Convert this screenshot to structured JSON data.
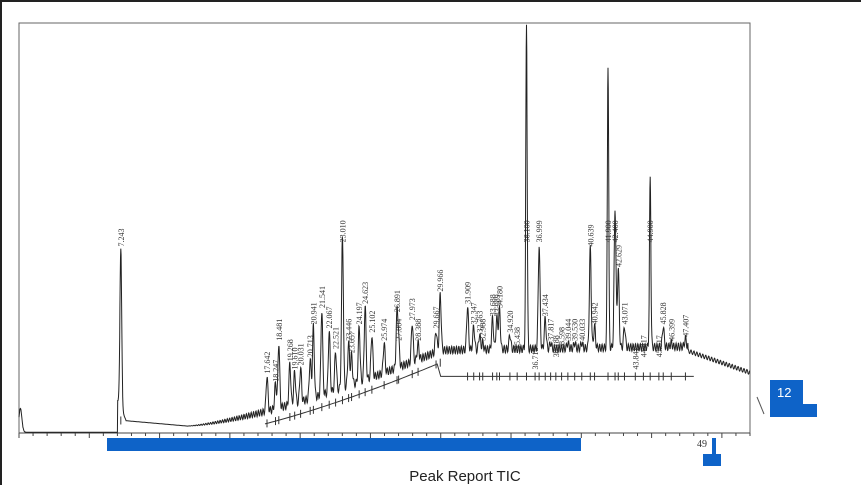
{
  "chart_data": {
    "type": "line",
    "xlabel": "Peak Report TIC",
    "tick_label": "49",
    "badge_label": "12",
    "xlim": [
      0,
      52
    ],
    "ylim": [
      0,
      100
    ],
    "peaks": [
      {
        "rt": 7.243,
        "label": "7.243",
        "h": 45
      },
      {
        "rt": 17.642,
        "label": "17.642",
        "h": 14
      },
      {
        "rt": 18.247,
        "label": "18.247",
        "h": 12
      },
      {
        "rt": 18.481,
        "label": "18.481",
        "h": 22
      },
      {
        "rt": 19.268,
        "label": "19.268",
        "h": 17
      },
      {
        "rt": 19.61,
        "label": "19.610",
        "h": 15
      },
      {
        "rt": 20.031,
        "label": "20.031",
        "h": 16
      },
      {
        "rt": 20.713,
        "label": "20.713",
        "h": 18
      },
      {
        "rt": 20.941,
        "label": "20.941",
        "h": 26
      },
      {
        "rt": 21.541,
        "label": "21.541",
        "h": 30
      },
      {
        "rt": 22.067,
        "label": "22.067",
        "h": 25
      },
      {
        "rt": 22.521,
        "label": "22.521",
        "h": 20
      },
      {
        "rt": 23.01,
        "label": "23.010",
        "h": 48
      },
      {
        "rt": 23.446,
        "label": "23.446",
        "h": 22
      },
      {
        "rt": 23.657,
        "label": "23.657",
        "h": 19
      },
      {
        "rt": 24.197,
        "label": "24.197",
        "h": 26
      },
      {
        "rt": 24.623,
        "label": "24.623",
        "h": 31
      },
      {
        "rt": 25.102,
        "label": "25.102",
        "h": 24
      },
      {
        "rt": 25.974,
        "label": "25.974",
        "h": 22
      },
      {
        "rt": 27.004,
        "label": "27.004",
        "h": 22
      },
      {
        "rt": 26.891,
        "label": "26.891",
        "h": 29
      },
      {
        "rt": 27.973,
        "label": "27.973",
        "h": 27
      },
      {
        "rt": 28.388,
        "label": "28.388",
        "h": 22
      },
      {
        "rt": 29.667,
        "label": "29.667",
        "h": 25
      },
      {
        "rt": 29.966,
        "label": "29.966",
        "h": 34
      },
      {
        "rt": 31.909,
        "label": "31.909",
        "h": 31
      },
      {
        "rt": 32.347,
        "label": "32.347",
        "h": 26
      },
      {
        "rt": 32.763,
        "label": "32.763",
        "h": 24
      },
      {
        "rt": 32.988,
        "label": "32.988",
        "h": 22
      },
      {
        "rt": 33.688,
        "label": "33.688",
        "h": 28
      },
      {
        "rt": 33.989,
        "label": "33.989",
        "h": 28
      },
      {
        "rt": 34.18,
        "label": "34.180",
        "h": 30
      },
      {
        "rt": 34.92,
        "label": "34.920",
        "h": 24
      },
      {
        "rt": 35.438,
        "label": "35.438",
        "h": 20
      },
      {
        "rt": 36.1,
        "label": "36.100",
        "h": 100
      },
      {
        "rt": 36.999,
        "label": "36.999",
        "h": 46
      },
      {
        "rt": 36.712,
        "label": "36.712",
        "h": 15
      },
      {
        "rt": 37.434,
        "label": "37.434",
        "h": 28
      },
      {
        "rt": 37.817,
        "label": "37.817",
        "h": 22
      },
      {
        "rt": 38.188,
        "label": "38.188",
        "h": 18
      },
      {
        "rt": 38.598,
        "label": "38.598",
        "h": 20
      },
      {
        "rt": 39.044,
        "label": "39.044",
        "h": 22
      },
      {
        "rt": 39.53,
        "label": "39.530",
        "h": 22
      },
      {
        "rt": 40.033,
        "label": "40.033",
        "h": 22
      },
      {
        "rt": 40.639,
        "label": "40.639",
        "h": 45
      },
      {
        "rt": 40.942,
        "label": "40.942",
        "h": 26
      },
      {
        "rt": 41.9,
        "label": "41.900",
        "h": 90
      },
      {
        "rt": 42.629,
        "label": "42.629",
        "h": 40
      },
      {
        "rt": 42.4,
        "label": "42.400",
        "h": 55
      },
      {
        "rt": 43.071,
        "label": "43.071",
        "h": 26
      },
      {
        "rt": 43.841,
        "label": "43.841",
        "h": 15
      },
      {
        "rt": 44.417,
        "label": "44.417",
        "h": 18
      },
      {
        "rt": 44.9,
        "label": "44.900",
        "h": 62
      },
      {
        "rt": 45.517,
        "label": "45.517",
        "h": 18
      },
      {
        "rt": 45.828,
        "label": "45.828",
        "h": 26
      },
      {
        "rt": 46.399,
        "label": "46.399",
        "h": 22
      },
      {
        "rt": 47.407,
        "label": "47.407",
        "h": 23
      }
    ]
  }
}
